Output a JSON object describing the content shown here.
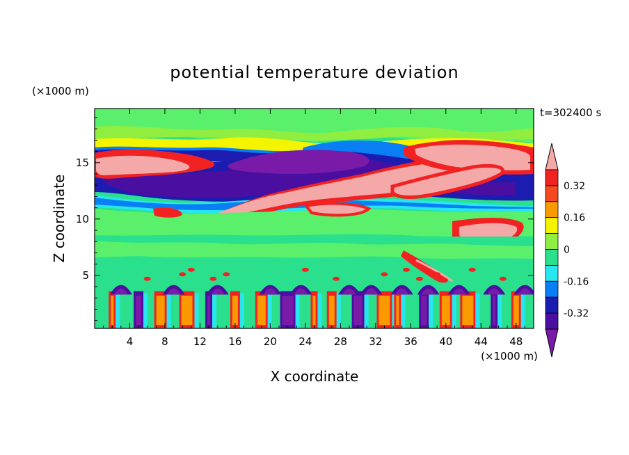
{
  "chart_data": {
    "type": "heatmap",
    "title": "potential temperature deviation",
    "xlabel": "X coordinate",
    "ylabel": "Z coordinate",
    "x_unit": "(×1000 m)",
    "y_unit": "(×1000 m)",
    "time_label": "t=302400 s",
    "xlim": [
      0,
      50
    ],
    "ylim": [
      0.3,
      19.8
    ],
    "x_ticks": [
      4,
      8,
      12,
      16,
      20,
      24,
      28,
      32,
      36,
      40,
      44,
      48
    ],
    "y_ticks": [
      5,
      10,
      15
    ],
    "colorbar": {
      "levels": [
        -0.4,
        -0.32,
        -0.24,
        -0.16,
        -0.08,
        0,
        0.08,
        0.16,
        0.24,
        0.32,
        0.4
      ],
      "tick_labels": [
        "0.32",
        "0.16",
        "0",
        "-0.16",
        "-0.32"
      ],
      "tick_values": [
        0.32,
        0.16,
        0,
        -0.16,
        -0.32
      ],
      "colors": [
        "#7a1aa8",
        "#4a0fa0",
        "#1c1cb0",
        "#0a7ff5",
        "#28e6f0",
        "#2ae08c",
        "#90ee40",
        "#f4f400",
        "#fa9a00",
        "#f44a1e",
        "#f22222",
        "#f4a8a8"
      ],
      "extend": "both"
    },
    "background_color": "#2ae08c",
    "regions": [
      {
        "name": "upper green band",
        "value": 0.04,
        "x": [
          0,
          50
        ],
        "z": [
          16.5,
          19.8
        ]
      },
      {
        "name": "positive anomaly west",
        "value": 0.4,
        "x": [
          0.5,
          9
        ],
        "z": [
          14,
          15.8
        ]
      },
      {
        "name": "positive anomaly tilted band",
        "value": 0.4,
        "x": [
          14,
          37
        ],
        "z": [
          10.5,
          14.5
        ]
      },
      {
        "name": "positive anomaly east",
        "value": 0.4,
        "x": [
          38,
          50
        ],
        "z": [
          14,
          16.5
        ]
      },
      {
        "name": "negative anomaly centre",
        "value": -0.4,
        "x": [
          18,
          30
        ],
        "z": [
          13,
          16
        ]
      },
      {
        "name": "negative anomaly west",
        "value": -0.36,
        "x": [
          0,
          14
        ],
        "z": [
          12.5,
          14
        ]
      },
      {
        "name": "cyan layer",
        "value": -0.12,
        "x": [
          0,
          50
        ],
        "z": [
          10.5,
          12.5
        ]
      },
      {
        "name": "pink anomaly low east",
        "value": 0.4,
        "x": [
          40,
          45
        ],
        "z": [
          7,
          8.5
        ]
      },
      {
        "name": "convective columns",
        "value": 0.3,
        "x": [
          0,
          50
        ],
        "z": [
          0.3,
          4
        ]
      },
      {
        "name": "negative caps",
        "value": -0.38,
        "x": [
          0,
          50
        ],
        "z": [
          3.3,
          4.3
        ]
      }
    ]
  }
}
